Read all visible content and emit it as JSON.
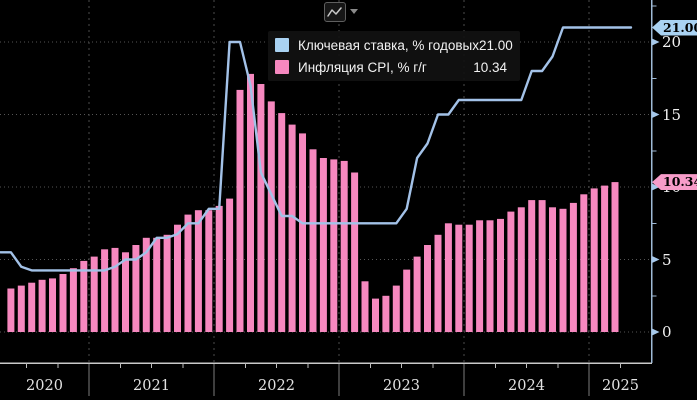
{
  "toolbar": {
    "chart_type_icon": "line-chart-icon",
    "dropdown_icon": "caret-down-icon"
  },
  "legend": {
    "items": [
      {
        "label": "Ключевая ставка, % годовых",
        "value": "21.00",
        "swatch_color": "#a9d2f2"
      },
      {
        "label": "Инфляция CPI, % г/г",
        "value": "10.34",
        "swatch_color": "#f688bf"
      }
    ]
  },
  "axis_badges": [
    {
      "text": "21.00",
      "value": 21.0,
      "color": "#a9d2f2"
    },
    {
      "text": "10.34",
      "value": 10.34,
      "color": "#f79cc9"
    }
  ],
  "colors": {
    "background": "#000000",
    "line_series": "#a3c2e8",
    "bar_series": "#f688bf",
    "grid": "#555555",
    "right_axis": "#9fbad6",
    "bottom_axis": "#c9c9c9"
  },
  "chart_data": {
    "type": "mixed",
    "title": "",
    "xlim": [
      "2020-04",
      "2025-06"
    ],
    "ylim": [
      -2,
      23
    ],
    "grid": true,
    "legend_position": "top",
    "x_tick_labels": [
      "2020",
      "2021",
      "2022",
      "2023",
      "2024",
      "2025"
    ],
    "y_tick_labels": [
      0,
      5,
      10,
      15,
      20
    ],
    "y_minor_ticks": [
      2.5,
      7.5,
      12.5,
      17.5,
      22.5
    ],
    "series": [
      {
        "name": "Ключевая ставка, % годовых",
        "type": "line",
        "color": "#a3c2e8",
        "x_start": "2020-04",
        "x_interval": "month",
        "last_value": 21.0,
        "values": [
          5.5,
          5.5,
          4.5,
          4.25,
          4.25,
          4.25,
          4.25,
          4.25,
          4.25,
          4.25,
          4.25,
          4.5,
          5.0,
          5.0,
          5.5,
          6.5,
          6.5,
          6.75,
          7.5,
          7.5,
          8.5,
          8.5,
          20,
          20,
          17,
          11,
          9.5,
          8.0,
          8.0,
          7.5,
          7.5,
          7.5,
          7.5,
          7.5,
          7.5,
          7.5,
          7.5,
          7.5,
          7.5,
          8.5,
          12,
          13,
          15,
          15,
          16,
          16,
          16,
          16,
          16,
          16,
          16,
          18,
          18,
          19,
          21,
          21,
          21,
          21,
          21,
          21,
          21
        ]
      },
      {
        "name": "Инфляция CPI, % г/г",
        "type": "bar",
        "color": "#f688bf",
        "x_start": "2020-05",
        "x_interval": "month",
        "last_value": 10.34,
        "values": [
          3.0,
          3.2,
          3.4,
          3.6,
          3.7,
          4.0,
          4.4,
          4.9,
          5.2,
          5.7,
          5.8,
          5.5,
          6.0,
          6.5,
          6.5,
          6.7,
          7.4,
          8.1,
          8.4,
          8.4,
          8.7,
          9.2,
          16.7,
          17.8,
          17.1,
          15.9,
          15.1,
          14.3,
          13.7,
          12.6,
          12.0,
          11.9,
          11.8,
          11.0,
          3.5,
          2.3,
          2.5,
          3.2,
          4.3,
          5.2,
          6.0,
          6.7,
          7.5,
          7.4,
          7.4,
          7.7,
          7.7,
          7.8,
          8.3,
          8.6,
          9.1,
          9.1,
          8.6,
          8.5,
          8.9,
          9.5,
          9.9,
          10.1,
          10.34
        ]
      }
    ]
  }
}
